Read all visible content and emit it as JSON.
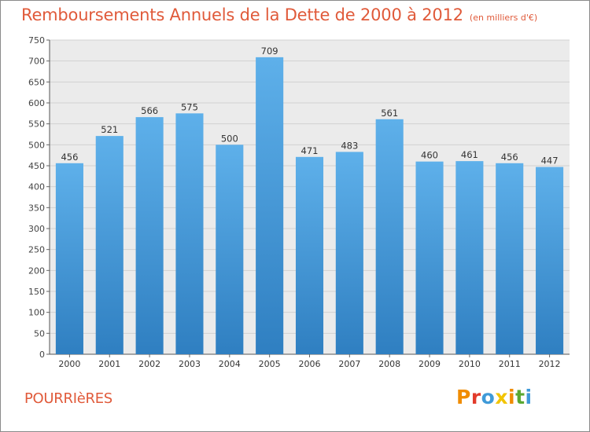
{
  "header": {
    "title": "Remboursements Annuels de la Dette de 2000 à 2012",
    "subtitle": "(en milliers d'€)"
  },
  "footer": {
    "town": "POURRIèRES",
    "logo": "Proxiti"
  },
  "colors": {
    "title": "#e05a3a",
    "bar_top": "#5eb0ea",
    "bar_bottom": "#2f7fc1",
    "grid": "#d0d0d0",
    "background": "#ebebeb",
    "logo_letters": [
      "#f08c00",
      "#e23b2b",
      "#3f9ad8",
      "#f2c400",
      "#f08c00",
      "#5aa832",
      "#3f9ad8"
    ]
  },
  "chart_data": {
    "type": "bar",
    "title": "Remboursements Annuels de la Dette de 2000 à 2012",
    "xlabel": "",
    "ylabel": "",
    "categories": [
      "2000",
      "2001",
      "2002",
      "2003",
      "2004",
      "2005",
      "2006",
      "2007",
      "2008",
      "2009",
      "2010",
      "2011",
      "2012"
    ],
    "values": [
      456,
      521,
      566,
      575,
      500,
      709,
      471,
      483,
      561,
      460,
      461,
      456,
      447
    ],
    "ylim": [
      0,
      750
    ],
    "yticks": [
      0,
      50,
      100,
      150,
      200,
      250,
      300,
      350,
      400,
      450,
      500,
      550,
      600,
      650,
      700,
      750
    ],
    "grid": true,
    "data_labels": true
  }
}
